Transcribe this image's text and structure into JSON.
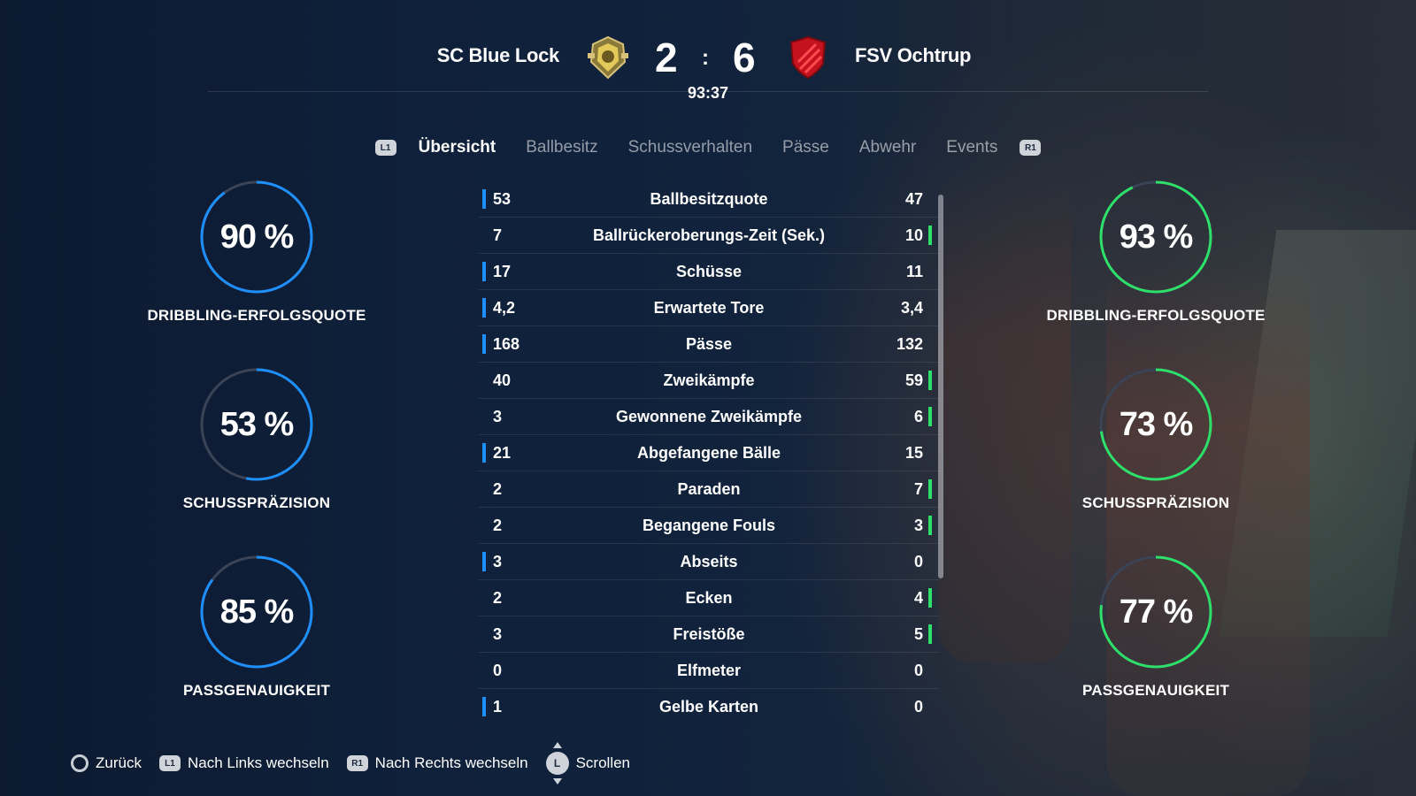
{
  "header": {
    "home_team": "SC Blue Lock",
    "away_team": "FSV Ochtrup",
    "home_score": "2",
    "separator": ":",
    "away_score": "6",
    "clock": "93:37",
    "home_crest_icon": "gold-shield-crest-icon",
    "away_crest_icon": "red-shield-crest-icon"
  },
  "tabs": {
    "left_shoulder": "L1",
    "right_shoulder": "R1",
    "items": [
      {
        "label": "Übersicht",
        "active": true
      },
      {
        "label": "Ballbesitz",
        "active": false
      },
      {
        "label": "Schussverhalten",
        "active": false
      },
      {
        "label": "Pässe",
        "active": false
      },
      {
        "label": "Abwehr",
        "active": false
      },
      {
        "label": "Events",
        "active": false
      }
    ]
  },
  "colors": {
    "home_accent": "#1e8fff",
    "away_accent": "#2ee06a",
    "track": "#3a4456"
  },
  "home_gauges": [
    {
      "value": "90 %",
      "fraction": 0.9,
      "label": "DRIBBLING-ERFOLGSQUOTE"
    },
    {
      "value": "53 %",
      "fraction": 0.53,
      "label": "SCHUSSPRÄZISION"
    },
    {
      "value": "85 %",
      "fraction": 0.85,
      "label": "PASSGENAUIGKEIT"
    }
  ],
  "away_gauges": [
    {
      "value": "93 %",
      "fraction": 0.93,
      "label": "DRIBBLING-ERFOLGSQUOTE"
    },
    {
      "value": "73 %",
      "fraction": 0.73,
      "label": "SCHUSSPRÄZISION"
    },
    {
      "value": "77 %",
      "fraction": 0.77,
      "label": "PASSGENAUIGKEIT"
    }
  ],
  "stats": [
    {
      "name": "Ballbesitzquote",
      "home": "53",
      "away": "47",
      "leader": "home"
    },
    {
      "name": "Ballrückeroberungs-Zeit (Sek.)",
      "home": "7",
      "away": "10",
      "leader": "away"
    },
    {
      "name": "Schüsse",
      "home": "17",
      "away": "11",
      "leader": "home"
    },
    {
      "name": "Erwartete Tore",
      "home": "4,2",
      "away": "3,4",
      "leader": "home"
    },
    {
      "name": "Pässe",
      "home": "168",
      "away": "132",
      "leader": "home"
    },
    {
      "name": "Zweikämpfe",
      "home": "40",
      "away": "59",
      "leader": "away"
    },
    {
      "name": "Gewonnene Zweikämpfe",
      "home": "3",
      "away": "6",
      "leader": "away"
    },
    {
      "name": "Abgefangene Bälle",
      "home": "21",
      "away": "15",
      "leader": "home"
    },
    {
      "name": "Paraden",
      "home": "2",
      "away": "7",
      "leader": "away"
    },
    {
      "name": "Begangene Fouls",
      "home": "2",
      "away": "3",
      "leader": "away"
    },
    {
      "name": "Abseits",
      "home": "3",
      "away": "0",
      "leader": "home"
    },
    {
      "name": "Ecken",
      "home": "2",
      "away": "4",
      "leader": "away"
    },
    {
      "name": "Freistöße",
      "home": "3",
      "away": "5",
      "leader": "away"
    },
    {
      "name": "Elfmeter",
      "home": "0",
      "away": "0",
      "leader": "none"
    },
    {
      "name": "Gelbe Karten",
      "home": "1",
      "away": "0",
      "leader": "home"
    }
  ],
  "footer": {
    "back": "Zurück",
    "left_button": "L1",
    "left_label": "Nach Links wechseln",
    "right_button": "R1",
    "right_label": "Nach Rechts wechseln",
    "stick_button": "L",
    "scroll_label": "Scrollen"
  }
}
